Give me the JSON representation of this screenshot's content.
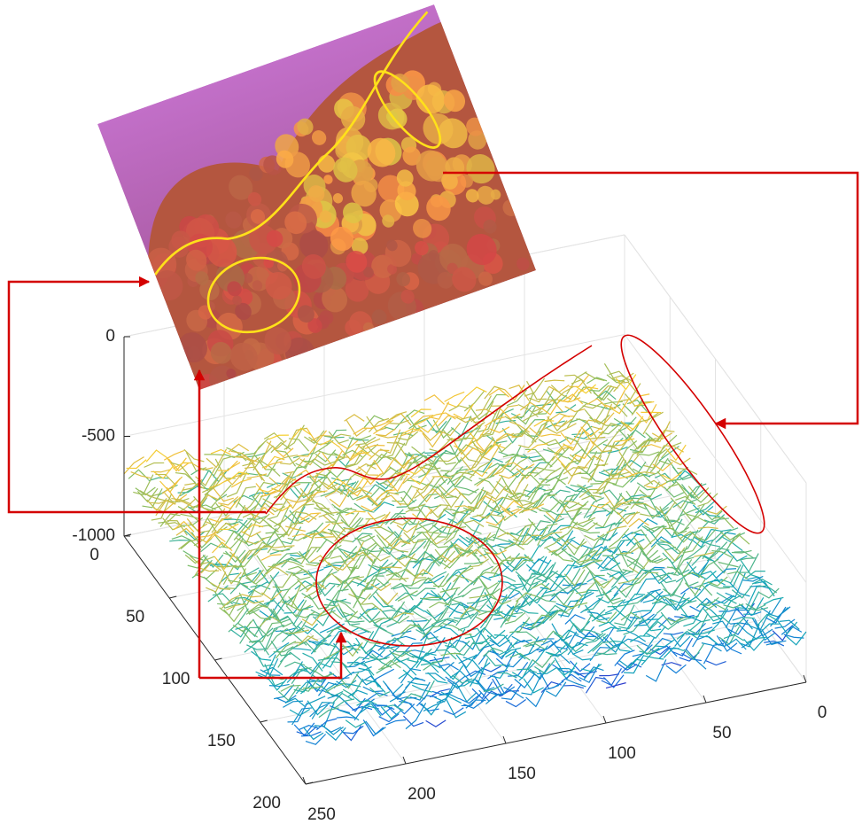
{
  "chart_data": {
    "type": "surface",
    "xlim": [
      0,
      250
    ],
    "xticks": [
      0,
      50,
      100,
      150,
      200,
      250
    ],
    "ylim": [
      0,
      200
    ],
    "yticks": [
      0,
      50,
      100,
      150,
      200
    ],
    "zlim": [
      -1000,
      0
    ],
    "zticks": [
      0,
      -500,
      -1000
    ],
    "grid": true
  }
}
